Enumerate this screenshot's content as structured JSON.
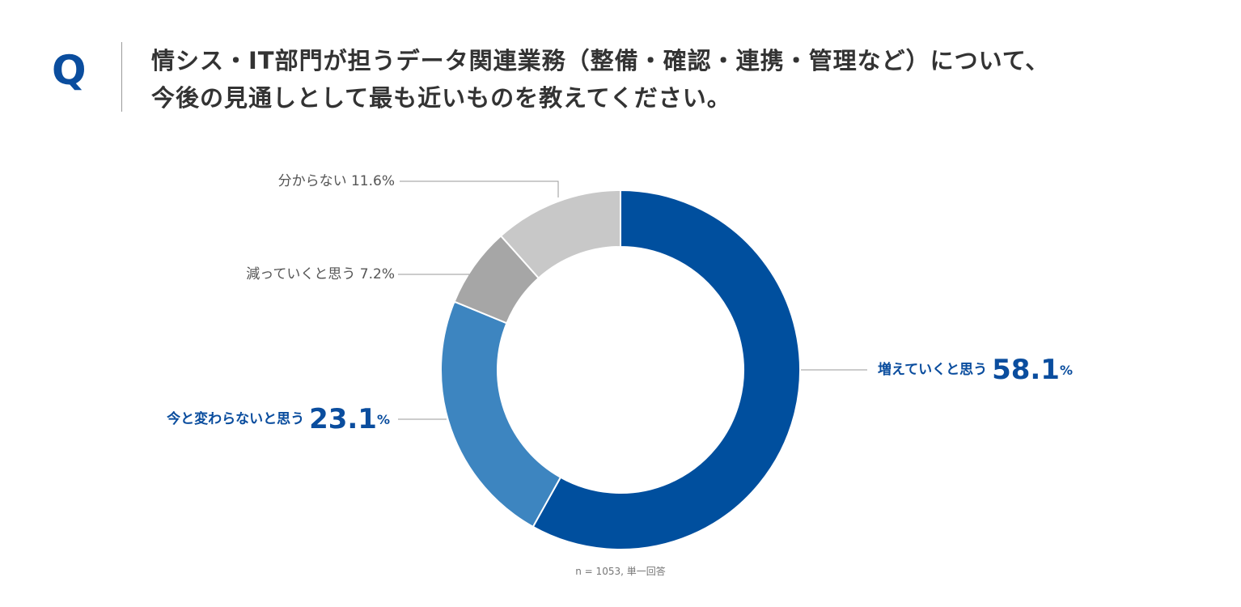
{
  "question": {
    "mark": "Q",
    "line1": "情シス・IT部門が担うデータ関連業務（整備・確認・連携・管理など）について、",
    "line2": "今後の見通しとして最も近いものを教えてください。"
  },
  "chart_data": {
    "type": "pie",
    "donut": true,
    "categories": [
      "増えていくと思う",
      "今と変わらないと思う",
      "減っていくと思う",
      "分からない"
    ],
    "values": [
      58.1,
      23.1,
      7.2,
      11.6
    ],
    "value_texts": [
      "58.1",
      "23.1",
      "7.2",
      "11.6"
    ],
    "unit": "%",
    "colors": [
      "#004f9e",
      "#3d85c0",
      "#a6a6a6",
      "#c8c8c8"
    ],
    "label_colors": [
      "#0a4d9e",
      "#0a4d9e",
      "#555555",
      "#555555"
    ],
    "title": "",
    "note": "n = 1053, 単一回答"
  }
}
